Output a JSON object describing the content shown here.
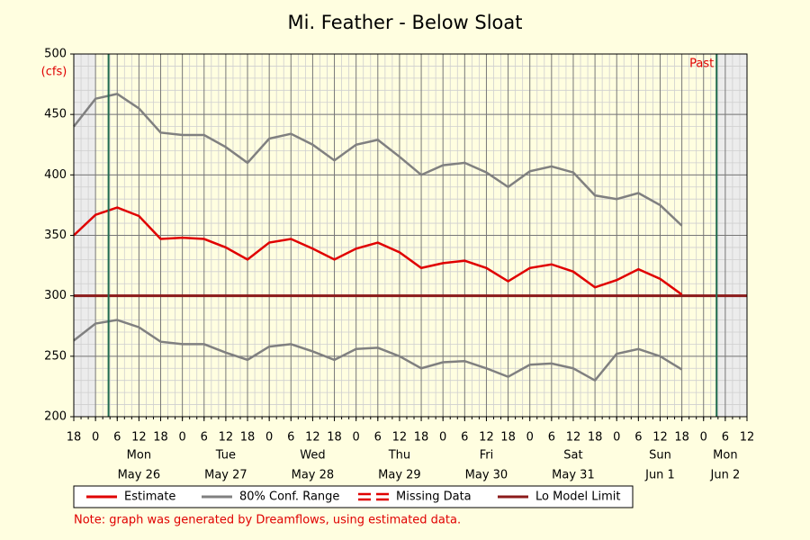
{
  "chart_data": {
    "type": "line",
    "title": "Mi. Feather - Below Sloat",
    "y_label": "(cfs)",
    "ylim": [
      200,
      500
    ],
    "yticks": [
      200,
      250,
      300,
      350,
      400,
      450,
      500
    ],
    "grid": true,
    "x": [
      18,
      0,
      6,
      12,
      18,
      0,
      6,
      12,
      18,
      0,
      6,
      12,
      18,
      0,
      6,
      12,
      18,
      0,
      6,
      12,
      18,
      0,
      6,
      12,
      18,
      0,
      6,
      12,
      18,
      0,
      6,
      12
    ],
    "days": [
      {
        "weekday": "Mon",
        "date": "May 26"
      },
      {
        "weekday": "Tue",
        "date": "May 27"
      },
      {
        "weekday": "Wed",
        "date": "May 28"
      },
      {
        "weekday": "Thu",
        "date": "May 29"
      },
      {
        "weekday": "Fri",
        "date": "May 30"
      },
      {
        "weekday": "Sat",
        "date": "May 31"
      },
      {
        "weekday": "Sun",
        "date": "Jun 1"
      },
      {
        "weekday": "Mon",
        "date": "Jun 2"
      }
    ],
    "series": [
      {
        "name": "Estimate",
        "color": "#e00000",
        "values": [
          350,
          367,
          373,
          366,
          347,
          348,
          347,
          340,
          330,
          344,
          347,
          339,
          330,
          339,
          344,
          336,
          323,
          327,
          329,
          323,
          312,
          323,
          326,
          320,
          307,
          313,
          322,
          314,
          301,
          null,
          null,
          null
        ]
      },
      {
        "name": "80% Conf. Range",
        "color": "#808080",
        "values": [
          440,
          463,
          467,
          455,
          435,
          433,
          433,
          423,
          410,
          430,
          434,
          425,
          412,
          425,
          429,
          415,
          400,
          408,
          410,
          402,
          390,
          403,
          407,
          402,
          383,
          380,
          385,
          375,
          358,
          null,
          null,
          null
        ],
        "lower": [
          263,
          277,
          280,
          274,
          262,
          260,
          260,
          253,
          247,
          258,
          260,
          254,
          247,
          256,
          257,
          250,
          240,
          245,
          246,
          240,
          233,
          243,
          244,
          240,
          230,
          252,
          256,
          250,
          239,
          null,
          null,
          null
        ]
      }
    ],
    "missing_legend": {
      "name": "Missing Data",
      "color": "#e00000"
    },
    "reference_line": {
      "name": "Lo Model Limit",
      "value": 300,
      "color": "#8b1a1a"
    },
    "period_lines": [
      1.6,
      29.6
    ],
    "period_label": "Past",
    "note": "Note: graph was generated by Dreamflows, using estimated data."
  }
}
